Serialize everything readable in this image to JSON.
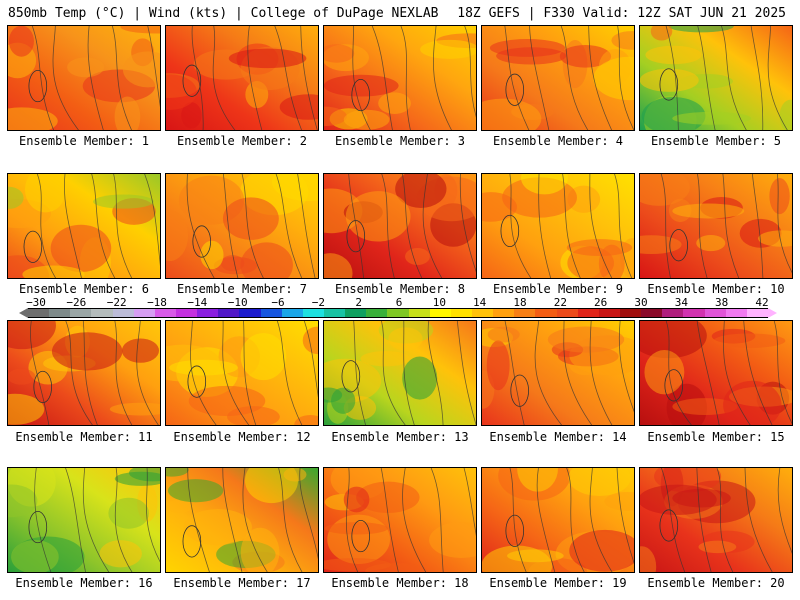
{
  "header": {
    "left": "850mb Temp (°C) | Wind (kts) | College of DuPage NEXLAB",
    "right": "18Z GEFS | F330 Valid: 12Z SAT JUN 21 2025"
  },
  "panels": [
    {
      "label": "Ensemble Member: 1",
      "palette": [
        "#e8331b",
        "#f35d14",
        "#f7931a",
        "#ffb50c"
      ]
    },
    {
      "label": "Ensemble Member: 2",
      "palette": [
        "#d81515",
        "#ee3518",
        "#f57a17",
        "#ffae0c"
      ]
    },
    {
      "label": "Ensemble Member: 3",
      "palette": [
        "#e0251a",
        "#f5681a",
        "#ffa60f",
        "#ffcf00"
      ]
    },
    {
      "label": "Ensemble Member: 4",
      "palette": [
        "#e8331b",
        "#f5781a",
        "#ffa00f",
        "#ffd000"
      ]
    },
    {
      "label": "Ensemble Member: 5",
      "palette": [
        "#1fa04f",
        "#a4cf22",
        "#ffc20a",
        "#f56516"
      ]
    },
    {
      "label": "Ensemble Member: 6",
      "palette": [
        "#ec4b1b",
        "#ffa00f",
        "#ffd000",
        "#9bc827"
      ]
    },
    {
      "label": "Ensemble Member: 7",
      "palette": [
        "#ec4b1b",
        "#f77f16",
        "#ffae0c",
        "#ffd800"
      ]
    },
    {
      "label": "Ensemble Member: 8",
      "palette": [
        "#b80f0f",
        "#e0251a",
        "#f5681a",
        "#ff9a12"
      ]
    },
    {
      "label": "Ensemble Member: 9",
      "palette": [
        "#f56516",
        "#ffa00f",
        "#ffc20a",
        "#ffe100"
      ]
    },
    {
      "label": "Ensemble Member: 10",
      "palette": [
        "#d81515",
        "#ec4b1b",
        "#f77f16",
        "#ffae0c"
      ]
    },
    {
      "label": "Ensemble Member: 11",
      "palette": [
        "#c81515",
        "#ec4b1b",
        "#ffa00f",
        "#ffc70a"
      ]
    },
    {
      "label": "Ensemble Member: 12",
      "palette": [
        "#f56516",
        "#ff9a12",
        "#ffbd0a",
        "#ffdf00"
      ]
    },
    {
      "label": "Ensemble Member: 13",
      "palette": [
        "#2aa03a",
        "#b9d51e",
        "#ffc20a",
        "#f5781a"
      ]
    },
    {
      "label": "Ensemble Member: 14",
      "palette": [
        "#e8331b",
        "#f5781a",
        "#ffa00f",
        "#ffd000"
      ]
    },
    {
      "label": "Ensemble Member: 15",
      "palette": [
        "#b80f0f",
        "#e0251a",
        "#f35d14",
        "#ff9a12"
      ]
    },
    {
      "label": "Ensemble Member: 16",
      "palette": [
        "#2aa03a",
        "#8fc52a",
        "#d8e31a",
        "#ffc20a"
      ]
    },
    {
      "label": "Ensemble Member: 17",
      "palette": [
        "#ffd400",
        "#ffb30c",
        "#f5781a",
        "#3aa82e"
      ]
    },
    {
      "label": "Ensemble Member: 18",
      "palette": [
        "#e0251a",
        "#f35d14",
        "#ff9a12",
        "#ffc20a"
      ]
    },
    {
      "label": "Ensemble Member: 19",
      "palette": [
        "#e0251a",
        "#f56516",
        "#ffa00f",
        "#ffcc05"
      ]
    },
    {
      "label": "Ensemble Member: 20",
      "palette": [
        "#c81515",
        "#e8331b",
        "#f57a17",
        "#ffae0c"
      ]
    }
  ],
  "colorbar": {
    "ticks": [
      "−30",
      "−26",
      "−22",
      "−18",
      "−14",
      "−10",
      "−6",
      "−2",
      "2",
      "6",
      "10",
      "14",
      "18",
      "22",
      "26",
      "30",
      "34",
      "38",
      "42"
    ],
    "colors": [
      "#6e6e6e",
      "#7e8a8a",
      "#9aa6a6",
      "#b4bcbc",
      "#bcbcd8",
      "#d69ef2",
      "#d85ae8",
      "#c431e0",
      "#8a1fe0",
      "#5118c8",
      "#1c1ccf",
      "#1656e0",
      "#1aa6e8",
      "#1ee0e0",
      "#19c2a3",
      "#0fa060",
      "#39b03a",
      "#7fc825",
      "#c7e01a",
      "#fff700",
      "#ffe100",
      "#ffc20a",
      "#ffa00f",
      "#f77f16",
      "#f35d14",
      "#ec4b1b",
      "#e0251a",
      "#c81515",
      "#a00e0e",
      "#8a0a2a",
      "#b01e7e",
      "#d132b0",
      "#e055d8",
      "#f07af0",
      "#ffb3ff"
    ]
  }
}
